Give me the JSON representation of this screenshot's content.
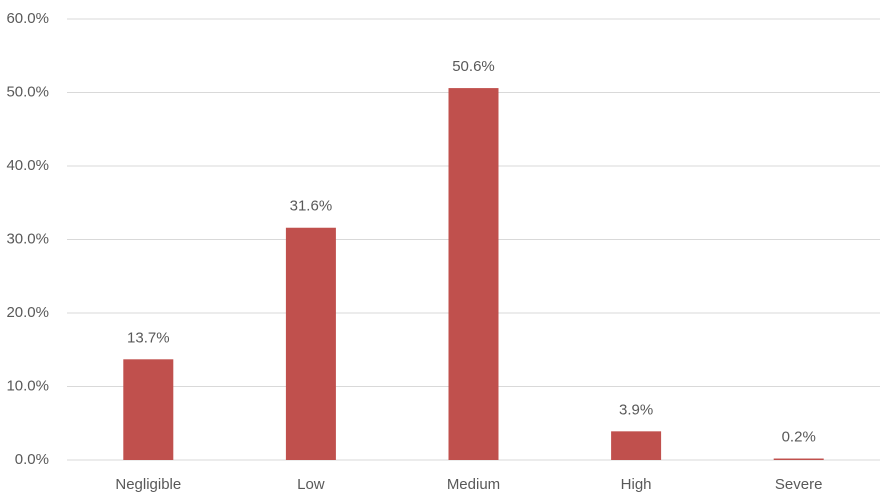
{
  "chart_data": {
    "type": "bar",
    "categories": [
      "Negligible",
      "Low",
      "Medium",
      "High",
      "Severe"
    ],
    "values": [
      13.7,
      31.6,
      50.6,
      3.9,
      0.2
    ],
    "value_labels": [
      "13.7%",
      "31.6%",
      "50.6%",
      "3.9%",
      "0.2%"
    ],
    "color": "#c0504d",
    "ylim": [
      0,
      60
    ],
    "yticks": [
      {
        "value": 0,
        "label": "0.0%"
      },
      {
        "value": 10,
        "label": "10.0%"
      },
      {
        "value": 20,
        "label": "20.0%"
      },
      {
        "value": 30,
        "label": "30.0%"
      },
      {
        "value": 40,
        "label": "40.0%"
      },
      {
        "value": 50,
        "label": "50.0%"
      },
      {
        "value": 60,
        "label": "60.0%"
      }
    ],
    "grid": true
  }
}
